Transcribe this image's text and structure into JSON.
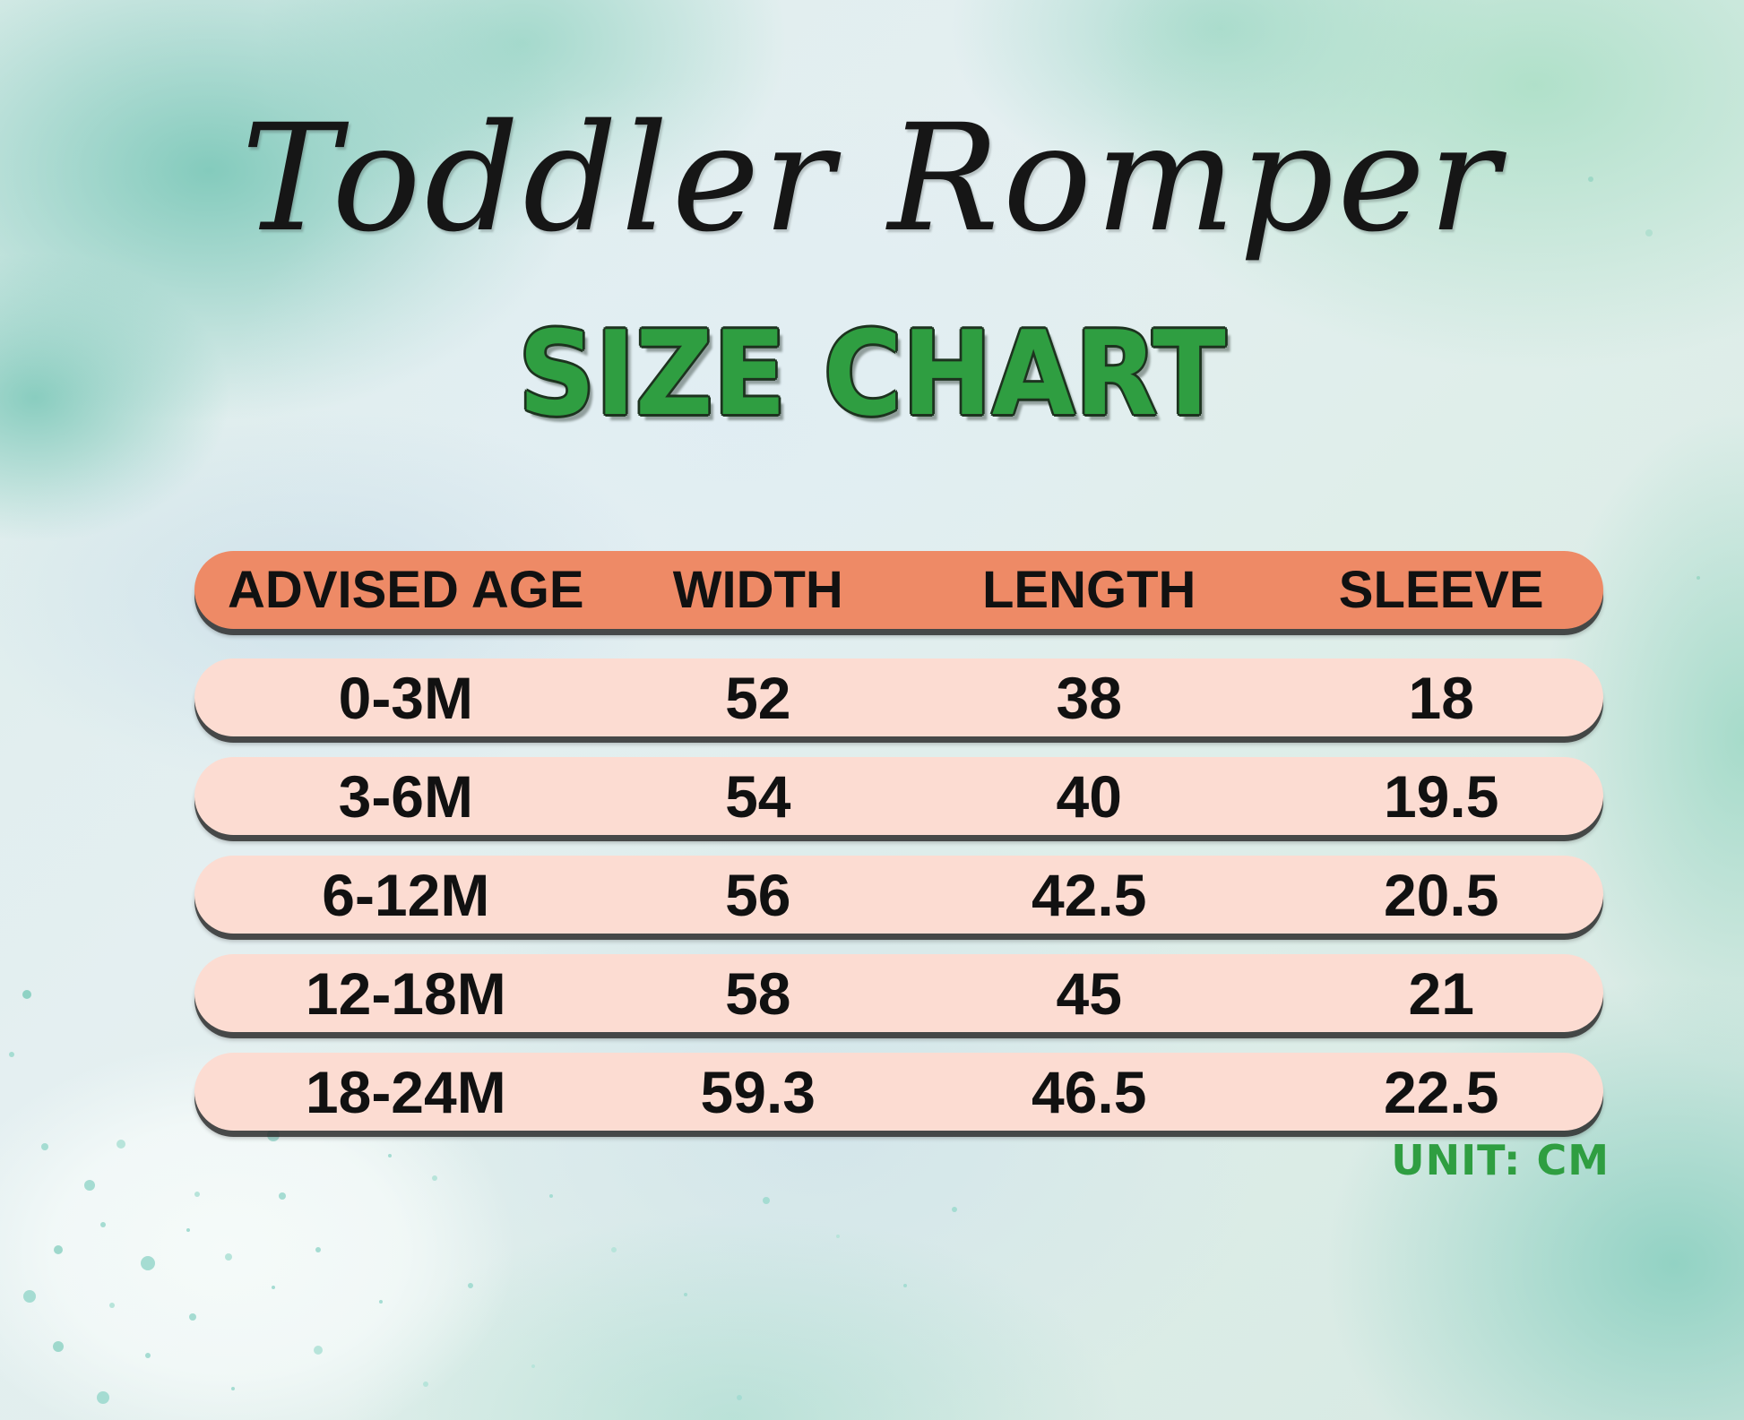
{
  "page": {
    "title": "Toddler Romper",
    "subtitle": "SIZE CHART",
    "unit_note": "UNIT: CM"
  },
  "colors": {
    "header_row_bg": "#ee8a66",
    "data_row_bg": "#fcdcd2",
    "accent_green": "#2f9e41",
    "title_text": "#161616",
    "table_text": "#111111",
    "background_teal": "#8fd2c4",
    "background_mint": "#abdfc6"
  },
  "chart_data": {
    "type": "table",
    "title": "Toddler Romper",
    "subtitle": "SIZE CHART",
    "columns": [
      "ADVISED AGE",
      "WIDTH",
      "LENGTH",
      "SLEEVE"
    ],
    "rows": [
      [
        "0-3M",
        "52",
        "38",
        "18"
      ],
      [
        "3-6M",
        "54",
        "40",
        "19.5"
      ],
      [
        "6-12M",
        "56",
        "42.5",
        "20.5"
      ],
      [
        "12-18M",
        "58",
        "45",
        "21"
      ],
      [
        "18-24M",
        "59.3",
        "46.5",
        "22.5"
      ]
    ],
    "unit": "CM",
    "layout": "pill-shaped rows; coral header bar, light-pink data bars, watercolor mint/teal background, unit note bottom-right"
  }
}
